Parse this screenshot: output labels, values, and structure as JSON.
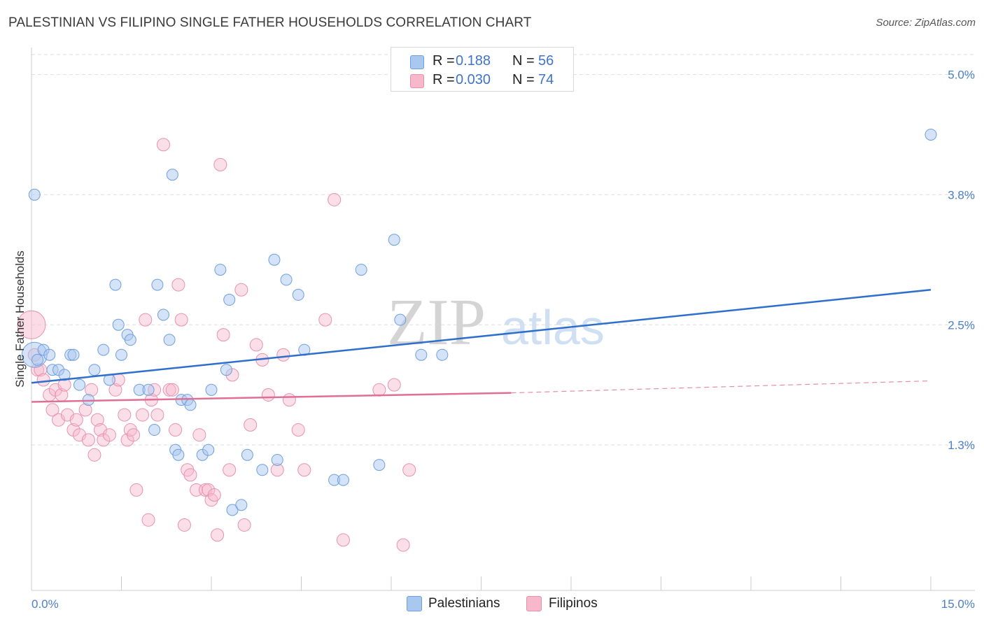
{
  "title": "PALESTINIAN VS FILIPINO SINGLE FATHER HOUSEHOLDS CORRELATION CHART",
  "source": "Source: ZipAtlas.com",
  "watermark": {
    "zip": "ZIP",
    "atlas": "atlas"
  },
  "legend": {
    "rows": [
      {
        "r_label": "R =",
        "r_value": "0.188",
        "n_label": "N =",
        "n_value": "56",
        "color": "#a9c8f0"
      },
      {
        "r_label": "R =",
        "r_value": "0.030",
        "n_label": "N =",
        "n_value": "74",
        "color": "#f7b8cb"
      }
    ]
  },
  "bottom_legend": {
    "palestinians": "Palestinians",
    "filipinos": "Filipinos"
  },
  "colors": {
    "palestinians_fill": "#a9c8f0",
    "palestinians_stroke": "#6f9fdc",
    "palestinians_line": "#2f6fcc",
    "filipinos_fill": "#f7b8cb",
    "filipinos_stroke": "#e891ad",
    "filipinos_line": "#e06f95",
    "tick_label": "#4a7fc9",
    "grid": "#dedede"
  },
  "chart_data": {
    "type": "scatter",
    "title": "PALESTINIAN VS FILIPINO SINGLE FATHER HOUSEHOLDS CORRELATION CHART",
    "xlabel": "",
    "ylabel": "Single Father Households",
    "xlim": [
      0,
      15
    ],
    "ylim": [
      0,
      5.2
    ],
    "x_tick_labels": [
      "0.0%",
      "15.0%"
    ],
    "y_ticks": [
      1.3,
      2.5,
      3.8,
      5.0
    ],
    "y_tick_labels": [
      "1.3%",
      "2.5%",
      "3.8%",
      "5.0%"
    ],
    "grid": true,
    "legend_position": "top-center",
    "series": [
      {
        "name": "Palestinians",
        "x": [
          0.05,
          0.1,
          0.2,
          0.3,
          0.35,
          0.45,
          0.55,
          0.65,
          0.7,
          0.8,
          0.95,
          1.05,
          1.2,
          1.3,
          1.4,
          1.45,
          1.5,
          1.6,
          1.65,
          1.8,
          1.95,
          2.05,
          2.1,
          2.2,
          2.3,
          2.35,
          2.4,
          2.45,
          2.5,
          2.6,
          2.65,
          2.85,
          2.95,
          3.0,
          3.15,
          3.25,
          3.3,
          3.35,
          3.5,
          3.6,
          3.85,
          4.05,
          4.1,
          4.25,
          4.45,
          4.55,
          5.05,
          5.2,
          5.5,
          5.8,
          6.05,
          6.15,
          6.5,
          6.85,
          15.0,
          0.05
        ],
        "y": [
          2.2,
          2.15,
          2.25,
          2.2,
          2.05,
          2.05,
          2.0,
          2.2,
          2.2,
          1.9,
          1.75,
          2.05,
          2.25,
          1.95,
          2.9,
          2.5,
          2.2,
          2.4,
          2.35,
          1.85,
          1.85,
          1.45,
          2.9,
          2.6,
          2.35,
          4.0,
          1.25,
          1.2,
          1.75,
          1.75,
          1.7,
          1.2,
          1.25,
          1.85,
          3.05,
          2.05,
          2.75,
          0.65,
          0.7,
          1.2,
          1.05,
          3.15,
          1.15,
          2.95,
          2.8,
          2.25,
          0.95,
          0.95,
          3.05,
          1.1,
          3.35,
          2.55,
          2.2,
          2.2,
          4.4,
          3.8
        ],
        "trend_line": {
          "x": [
            0,
            15
          ],
          "y": [
            1.92,
            2.85
          ]
        }
      },
      {
        "name": "Filipinos",
        "x": [
          0.1,
          0.15,
          0.2,
          0.3,
          0.35,
          0.4,
          0.45,
          0.5,
          0.55,
          0.6,
          0.7,
          0.75,
          0.8,
          0.9,
          0.95,
          1.0,
          1.05,
          1.1,
          1.15,
          1.2,
          1.3,
          1.4,
          1.45,
          1.55,
          1.6,
          1.65,
          1.7,
          1.75,
          1.85,
          1.9,
          1.95,
          2.0,
          2.05,
          2.1,
          2.2,
          2.3,
          2.35,
          2.4,
          2.45,
          2.5,
          2.55,
          2.6,
          2.65,
          2.75,
          2.8,
          2.9,
          2.95,
          3.0,
          3.05,
          3.1,
          3.15,
          3.2,
          3.3,
          3.35,
          3.5,
          3.55,
          3.65,
          3.75,
          3.85,
          3.95,
          4.1,
          4.2,
          4.3,
          4.45,
          4.55,
          4.9,
          5.05,
          5.2,
          5.8,
          6.05,
          6.2,
          6.3,
          0.0,
          0.05
        ],
        "y": [
          2.05,
          2.05,
          1.95,
          1.8,
          1.65,
          1.85,
          1.55,
          1.8,
          1.9,
          1.6,
          1.45,
          1.55,
          1.4,
          1.65,
          1.35,
          1.85,
          1.2,
          1.55,
          1.45,
          1.35,
          1.4,
          1.85,
          1.95,
          1.6,
          1.35,
          1.45,
          1.4,
          0.85,
          1.6,
          2.55,
          0.55,
          1.75,
          1.85,
          1.6,
          4.3,
          1.85,
          1.85,
          1.45,
          2.9,
          2.55,
          0.5,
          1.05,
          1.0,
          0.85,
          1.4,
          0.85,
          0.85,
          0.75,
          0.8,
          0.4,
          4.1,
          2.4,
          1.05,
          2.0,
          2.85,
          0.5,
          1.5,
          2.3,
          2.15,
          1.8,
          1.05,
          2.2,
          1.75,
          1.45,
          1.05,
          2.55,
          3.75,
          0.35,
          1.85,
          1.9,
          0.3,
          1.05,
          2.5,
          2.2
        ],
        "trend_line": {
          "x": [
            0,
            8
          ],
          "y": [
            1.73,
            1.82
          ]
        },
        "trend_line_extension": {
          "x": [
            8,
            15
          ],
          "y": [
            1.82,
            1.94
          ]
        }
      }
    ]
  }
}
